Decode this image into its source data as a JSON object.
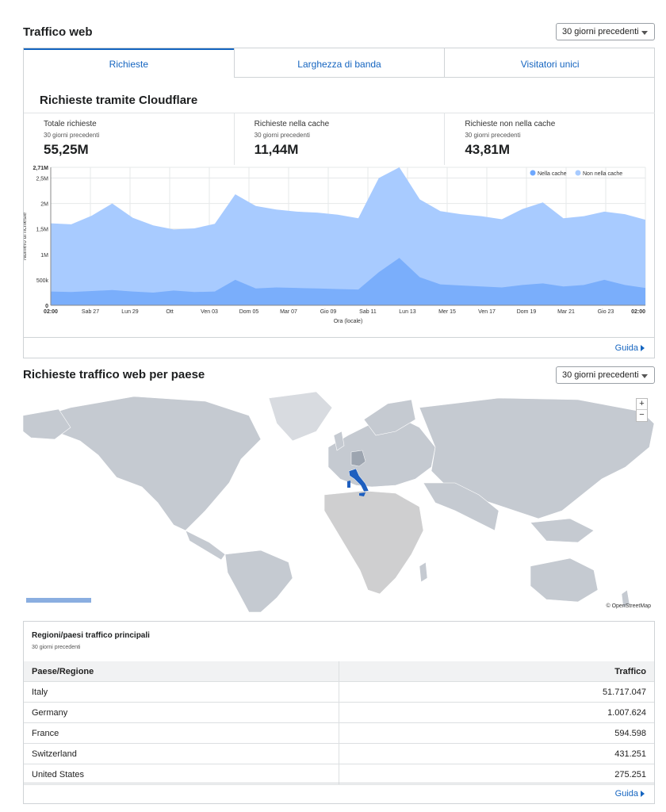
{
  "traffic": {
    "title": "Traffico web",
    "period_select": "30 giorni precedenti",
    "tabs": [
      "Richieste",
      "Larghezza di banda",
      "Visitatori unici"
    ],
    "card_title": "Richieste tramite Cloudflare",
    "stats": [
      {
        "label": "Totale richieste",
        "sub": "30 giorni precedenti",
        "value": "55,25M"
      },
      {
        "label": "Richieste nella cache",
        "sub": "30 giorni precedenti",
        "value": "11,44M"
      },
      {
        "label": "Richieste non nella cache",
        "sub": "30 giorni precedenti",
        "value": "43,81M"
      }
    ],
    "help_link": "Guida"
  },
  "chart_data": {
    "type": "area",
    "stacked": true,
    "xlabel": "Ora (locale)",
    "ylabel": "Numero di richieste",
    "y_ticks": [
      "0",
      "500k",
      "1M",
      "1,5M",
      "2M",
      "2,5M",
      "2,71M"
    ],
    "y_tick_values": [
      0,
      500000,
      1000000,
      1500000,
      2000000,
      2500000,
      2710000
    ],
    "ylim": [
      0,
      2710000
    ],
    "x_ticks": [
      "02:00",
      "Sab 27",
      "Lun 29",
      "Ott",
      "Ven 03",
      "Dom 05",
      "Mar 07",
      "Gio 09",
      "Sab 11",
      "Lun 13",
      "Mer 15",
      "Ven 17",
      "Dom 19",
      "Mar 21",
      "Gio 23",
      "02:00"
    ],
    "legend": {
      "position": "top-right",
      "entries": [
        {
          "name": "Nella cache",
          "color": "#6ea8fe"
        },
        {
          "name": "Non nella cache",
          "color": "#a8cbff"
        }
      ]
    },
    "grid": true,
    "series": [
      {
        "name": "Nella cache",
        "color": "#7aaefb",
        "values": [
          270000,
          260000,
          280000,
          300000,
          270000,
          250000,
          290000,
          260000,
          270000,
          500000,
          330000,
          350000,
          340000,
          330000,
          320000,
          310000,
          650000,
          930000,
          550000,
          410000,
          390000,
          370000,
          350000,
          400000,
          430000,
          370000,
          400000,
          500000,
          400000,
          340000
        ]
      },
      {
        "name": "Non nella cache",
        "color": "#a8cbff",
        "values": [
          1340000,
          1330000,
          1480000,
          1700000,
          1450000,
          1320000,
          1200000,
          1250000,
          1330000,
          1680000,
          1620000,
          1530000,
          1500000,
          1490000,
          1460000,
          1400000,
          1850000,
          1780000,
          1530000,
          1440000,
          1400000,
          1380000,
          1340000,
          1490000,
          1590000,
          1340000,
          1350000,
          1340000,
          1390000,
          1340000
        ]
      }
    ]
  },
  "country": {
    "title": "Richieste traffico web per paese",
    "period_select": "30 giorni precedenti",
    "map_attribution": "© OpenStreetMap",
    "zoom_in": "+",
    "zoom_out": "−",
    "highlight_color": "#1e5fbf",
    "table_title": "Regioni/paesi traffico principali",
    "table_sub": "30 giorni precedenti",
    "columns": [
      "Paese/Regione",
      "Traffico"
    ],
    "rows": [
      {
        "country": "Italy",
        "traffic": "51.717.047"
      },
      {
        "country": "Germany",
        "traffic": "1.007.624"
      },
      {
        "country": "France",
        "traffic": "594.598"
      },
      {
        "country": "Switzerland",
        "traffic": "431.251"
      },
      {
        "country": "United States",
        "traffic": "275.251"
      }
    ],
    "help_link": "Guida"
  }
}
